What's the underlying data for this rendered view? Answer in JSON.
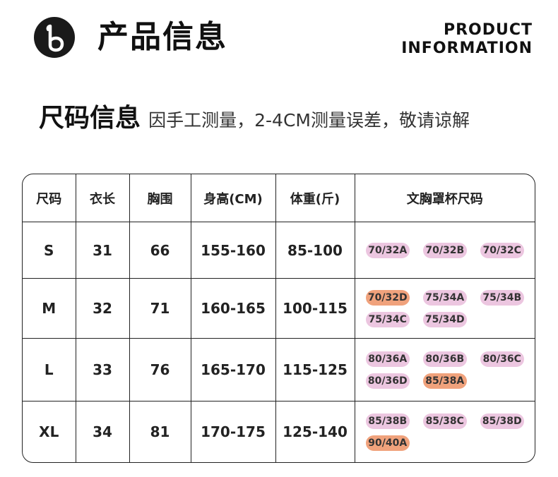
{
  "header": {
    "logo_letter": "B",
    "title": "产品信息",
    "en_line1": "PRODUCT",
    "en_line2": "INFORMATION"
  },
  "size_section": {
    "heading": "尺码信息",
    "note": "因手工测量，2-4CM测量误差，敬请谅解"
  },
  "colors": {
    "cup_pink": "#ecc6e0",
    "cup_orange": "#f0a27c"
  },
  "table": {
    "headers": [
      "尺码",
      "衣长",
      "胸围",
      "身高(CM)",
      "体重(斤)",
      "文胸罩杯尺码"
    ],
    "rows": [
      {
        "size": "S",
        "length": "31",
        "bust": "66",
        "height": "155-160",
        "weight": "85-100",
        "cups": [
          {
            "label": "70/32A",
            "color": "pink"
          },
          {
            "label": "70/32B",
            "color": "pink"
          },
          {
            "label": "70/32C",
            "color": "pink"
          }
        ]
      },
      {
        "size": "M",
        "length": "32",
        "bust": "71",
        "height": "160-165",
        "weight": "100-115",
        "cups": [
          {
            "label": "70/32D",
            "color": "orange"
          },
          {
            "label": "75/34A",
            "color": "pink"
          },
          {
            "label": "75/34B",
            "color": "pink"
          },
          {
            "label": "75/34C",
            "color": "pink"
          },
          {
            "label": "75/34D",
            "color": "pink"
          }
        ]
      },
      {
        "size": "L",
        "length": "33",
        "bust": "76",
        "height": "165-170",
        "weight": "115-125",
        "cups": [
          {
            "label": "80/36A",
            "color": "pink"
          },
          {
            "label": "80/36B",
            "color": "pink"
          },
          {
            "label": "80/36C",
            "color": "pink"
          },
          {
            "label": "80/36D",
            "color": "pink"
          },
          {
            "label": "85/38A",
            "color": "orange"
          }
        ]
      },
      {
        "size": "XL",
        "length": "34",
        "bust": "81",
        "height": "170-175",
        "weight": "125-140",
        "cups": [
          {
            "label": "85/38B",
            "color": "pink"
          },
          {
            "label": "85/38C",
            "color": "pink"
          },
          {
            "label": "85/38D",
            "color": "pink"
          },
          {
            "label": "90/40A",
            "color": "orange"
          }
        ]
      }
    ]
  }
}
